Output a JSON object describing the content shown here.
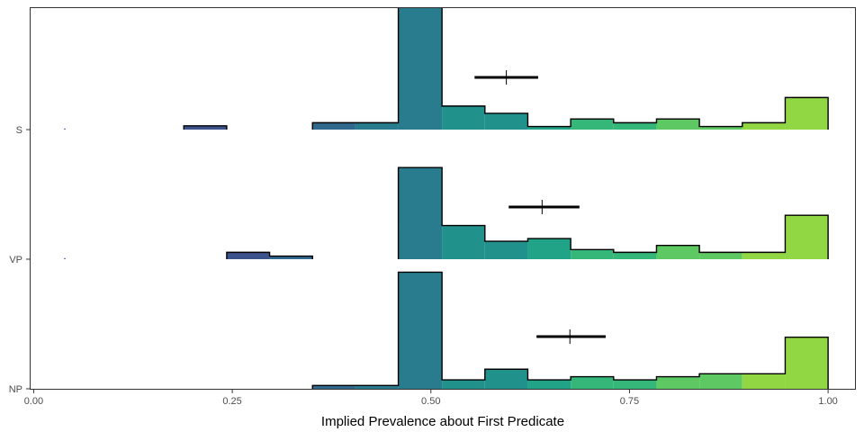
{
  "chart_data": {
    "type": "histogram",
    "xlabel": "Implied Prevalence about First Predicate",
    "ylabel": "",
    "xlim": [
      -0.005,
      1.035
    ],
    "x_ticks": [
      {
        "value": 0.0,
        "label": "0.00"
      },
      {
        "value": 0.25,
        "label": "0.25"
      },
      {
        "value": 0.5,
        "label": "0.50"
      },
      {
        "value": 0.75,
        "label": "0.75"
      },
      {
        "value": 1.0,
        "label": "1.00"
      }
    ],
    "categories": [
      "S",
      "VP",
      "NP"
    ],
    "bin_edges": [
      0.027,
      0.081,
      0.135,
      0.189,
      0.243,
      0.297,
      0.351,
      0.405,
      0.459,
      0.514,
      0.568,
      0.622,
      0.676,
      0.73,
      0.784,
      0.838,
      0.892,
      0.946,
      1.0
    ],
    "series": [
      {
        "name": "S",
        "density": [
          0.5,
          0,
          0,
          1.8,
          0,
          0,
          3.3,
          3.3,
          59,
          11.3,
          7.8,
          1.5,
          5.1,
          3.3,
          5.1,
          1.5,
          3.3,
          15.4
        ],
        "mean": 0.595,
        "ci": [
          0.555,
          0.635
        ]
      },
      {
        "name": "VP",
        "density": [
          0.5,
          0,
          0,
          0,
          3.3,
          1.5,
          0,
          0,
          44,
          16.2,
          8.6,
          9.9,
          4.6,
          3.3,
          6.6,
          3.3,
          3.3,
          21.1
        ],
        "mean": 0.64,
        "ci": [
          0.598,
          0.687
        ]
      },
      {
        "name": "NP",
        "density": [
          0,
          0,
          0,
          0,
          0,
          0,
          1.6,
          1.6,
          56,
          4.3,
          9.4,
          4.3,
          5.8,
          4.3,
          5.8,
          7.2,
          7.2,
          24.8
        ],
        "mean": 0.675,
        "ci": [
          0.633,
          0.72
        ]
      }
    ],
    "colors": {
      "fill_scale": [
        "#3b528b",
        "#31688e",
        "#287c8e",
        "#21918c",
        "#20a386",
        "#35b779",
        "#5ec962",
        "#90d743"
      ],
      "outline": "#000000",
      "mean_marker": "#000000",
      "panel_border": "#333333"
    }
  }
}
